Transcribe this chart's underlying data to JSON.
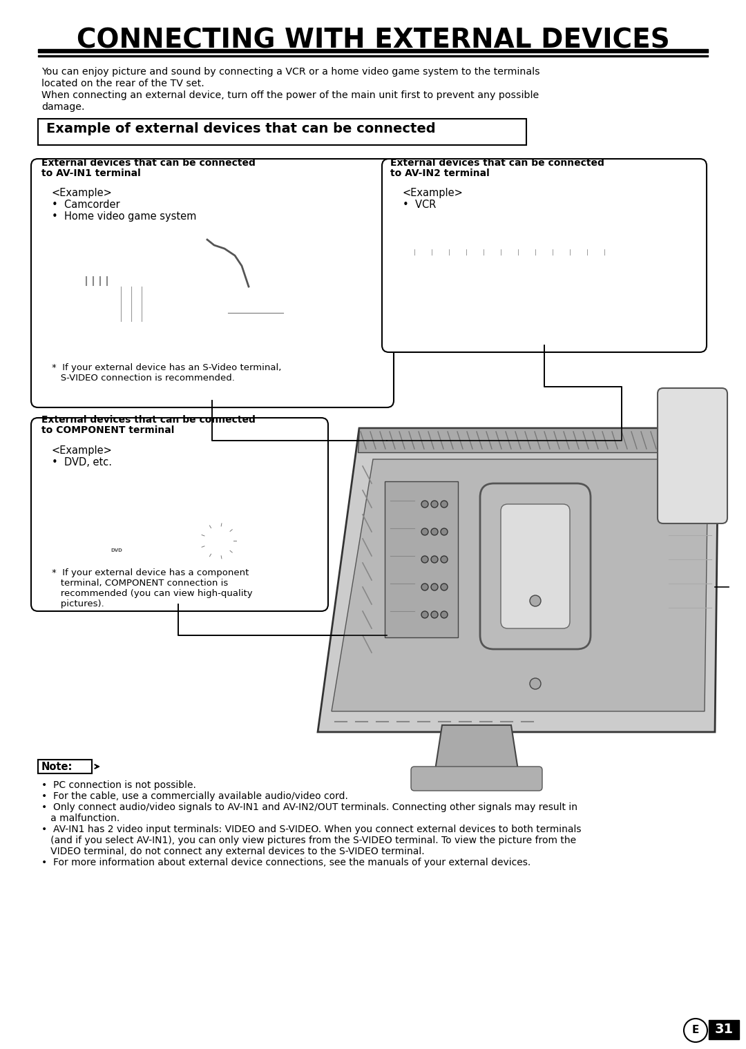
{
  "bg_color": "#ffffff",
  "title": "CONNECTING WITH EXTERNAL DEVICES",
  "intro_line1": "You can enjoy picture and sound by connecting a VCR or a home video game system to the terminals",
  "intro_line2": "located on the rear of the TV set.",
  "intro_line3": "When connecting an external device, turn off the power of the main unit first to prevent any possible",
  "intro_line4": "damage.",
  "section_title": "Example of external devices that can be connected",
  "box1_h1": "External devices that can be connected",
  "box1_h2": "to AV-IN1 terminal",
  "box1_ex": "<Example>",
  "box1_i1": "•  Camcorder",
  "box1_i2": "•  Home video game system",
  "box1_fn1": "*  If your external device has an S-Video terminal,",
  "box1_fn2": "   S-VIDEO connection is recommended.",
  "box2_h1": "External devices that can be connected",
  "box2_h2": "to AV-IN2 terminal",
  "box2_ex": "<Example>",
  "box2_i1": "•  VCR",
  "box3_h1": "External devices that can be connected",
  "box3_h2": "to COMPONENT terminal",
  "box3_ex": "<Example>",
  "box3_i1": "•  DVD, etc.",
  "box3_fn1": "*  If your external device has a component",
  "box3_fn2": "   terminal, COMPONENT connection is",
  "box3_fn3": "   recommended (you can view high-quality",
  "box3_fn4": "   pictures).",
  "note_label": "Note:",
  "note1": "•  PC connection is not possible.",
  "note2": "•  For the cable, use a commercially available audio/video cord.",
  "note3": "•  Only connect audio/video signals to AV-IN1 and AV-IN2/OUT terminals. Connecting other signals may result in",
  "note3b": "   a malfunction.",
  "note4": "•  AV-IN1 has 2 video input terminals: VIDEO and S-VIDEO. When you connect external devices to both terminals",
  "note4b": "   (and if you select AV-IN1), you can only view pictures from the S-VIDEO terminal. To view the picture from the",
  "note4c": "   VIDEO terminal, do not connect any external devices to the S-VIDEO terminal.",
  "note5": "•  For more information about external device connections, see the manuals of your external devices.",
  "page_letter": "E",
  "page_num": "31"
}
